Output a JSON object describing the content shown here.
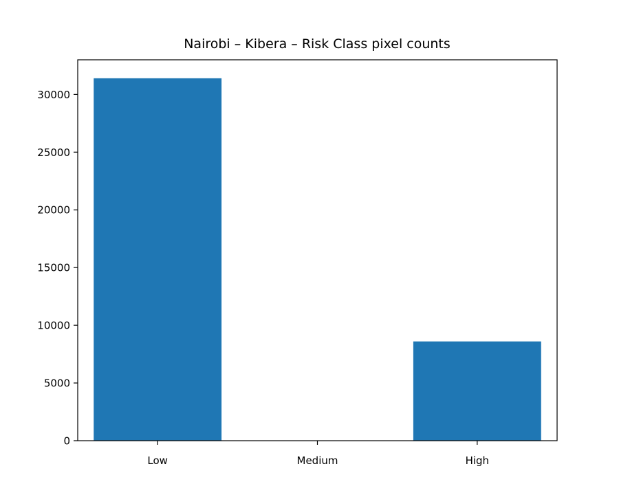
{
  "chart_data": {
    "type": "bar",
    "title": "Nairobi – Kibera – Risk Class pixel counts",
    "xlabel": "",
    "ylabel": "",
    "categories": [
      "Low",
      "Medium",
      "High"
    ],
    "values": [
      31400,
      0,
      8600
    ],
    "ylim": [
      0,
      33000
    ],
    "yticks": [
      0,
      5000,
      10000,
      15000,
      20000,
      25000,
      30000
    ],
    "bar_color": "#1f77b4",
    "grid": false,
    "legend": "none"
  }
}
